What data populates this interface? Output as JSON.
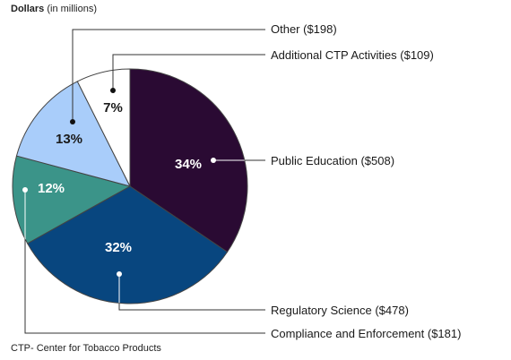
{
  "chart_data": {
    "type": "pie",
    "title": "",
    "unit_label_bold": "Dollars",
    "unit_label_rest": "(in millions)",
    "slices": [
      {
        "label": "Public Education ($508)",
        "value": 508,
        "percent_text": "34%",
        "color": "#2a0a33",
        "text_color": "#ffffff"
      },
      {
        "label": "Regulatory Science ($478)",
        "value": 478,
        "percent_text": "32%",
        "color": "#08467f",
        "text_color": "#ffffff"
      },
      {
        "label": "Compliance and Enforcement ($181)",
        "value": 181,
        "percent_text": "12%",
        "color": "#3b9489",
        "text_color": "#ffffff"
      },
      {
        "label": "Other ($198)",
        "value": 198,
        "percent_text": "13%",
        "color": "#a9cdfa",
        "text_color": "#1a1a1a"
      },
      {
        "label": "Additional CTP Activities ($109)",
        "value": 109,
        "percent_text": "7%",
        "color": "#ffffff",
        "text_color": "#1a1a1a"
      }
    ],
    "footnote": "CTP- Center for Tobacco Products",
    "start_position": "12 o'clock",
    "direction": "clockwise"
  }
}
